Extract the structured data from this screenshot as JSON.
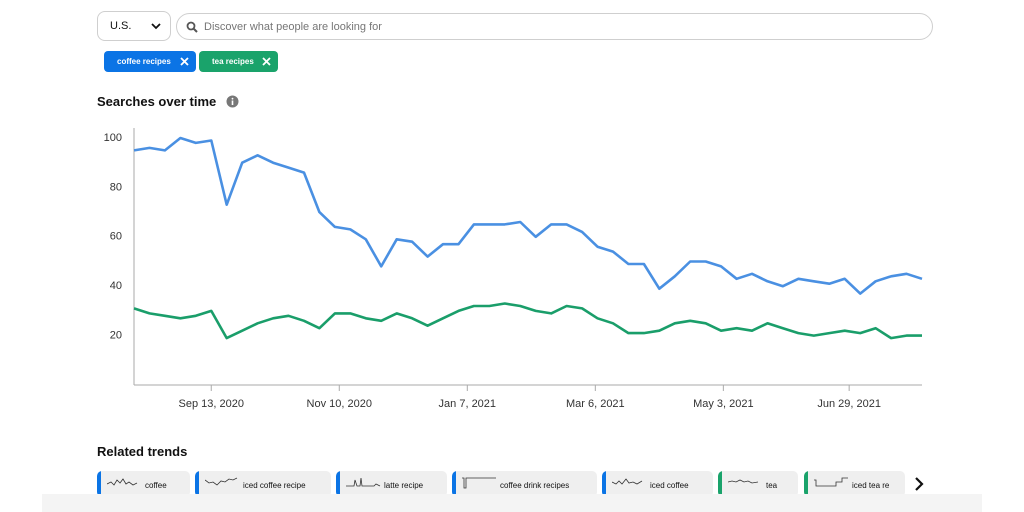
{
  "header": {
    "country": "U.S.",
    "search_placeholder": "Discover what people are looking for"
  },
  "filters": [
    {
      "label": "coffee recipes",
      "color": "#0b74e5"
    },
    {
      "label": "tea recipes",
      "color": "#1aa36b"
    }
  ],
  "chart_data": {
    "type": "line",
    "title": "Searches over time",
    "x": [
      "2020-08-09",
      "2020-08-16",
      "2020-08-23",
      "2020-08-30",
      "2020-09-06",
      "2020-09-13",
      "2020-09-20",
      "2020-09-27",
      "2020-10-04",
      "2020-10-11",
      "2020-10-18",
      "2020-10-25",
      "2020-11-01",
      "2020-11-08",
      "2020-11-15",
      "2020-11-22",
      "2020-11-29",
      "2020-12-06",
      "2020-12-13",
      "2020-12-20",
      "2020-12-27",
      "2021-01-03",
      "2021-01-10",
      "2021-01-17",
      "2021-01-24",
      "2021-01-31",
      "2021-02-07",
      "2021-02-14",
      "2021-02-21",
      "2021-02-28",
      "2021-03-07",
      "2021-03-14",
      "2021-03-21",
      "2021-03-28",
      "2021-04-04",
      "2021-04-11",
      "2021-04-18",
      "2021-04-25",
      "2021-05-02",
      "2021-05-09",
      "2021-05-16",
      "2021-05-23",
      "2021-05-30",
      "2021-06-06",
      "2021-06-13",
      "2021-06-20",
      "2021-06-27",
      "2021-07-04",
      "2021-07-11",
      "2021-07-18",
      "2021-07-25",
      "2021-08-01"
    ],
    "series": [
      {
        "name": "coffee recipes",
        "color": "#4a90e2",
        "values": [
          95,
          96,
          95,
          100,
          98,
          99,
          73,
          90,
          93,
          90,
          88,
          86,
          70,
          64,
          63,
          59,
          48,
          59,
          58,
          52,
          57,
          57,
          65,
          65,
          65,
          66,
          60,
          65,
          65,
          62,
          56,
          54,
          49,
          49,
          39,
          44,
          50,
          50,
          48,
          43,
          45,
          42,
          40,
          43,
          42,
          41,
          43,
          37,
          42,
          44,
          45,
          43
        ]
      },
      {
        "name": "tea recipes",
        "color": "#1a9e6a",
        "values": [
          31,
          29,
          28,
          27,
          28,
          30,
          19,
          22,
          25,
          27,
          28,
          26,
          23,
          29,
          29,
          27,
          26,
          29,
          27,
          24,
          27,
          30,
          32,
          32,
          33,
          32,
          30,
          29,
          32,
          31,
          27,
          25,
          21,
          21,
          22,
          25,
          26,
          25,
          22,
          23,
          22,
          25,
          23,
          21,
          20,
          21,
          22,
          21,
          23,
          19,
          20,
          20
        ]
      }
    ],
    "xlim": [
      "2020-08-09",
      "2021-08-01"
    ],
    "xticks": [
      {
        "value": "2020-09-13",
        "label": "Sep 13, 2020"
      },
      {
        "value": "2020-11-10",
        "label": "Nov 10, 2020"
      },
      {
        "value": "2021-01-07",
        "label": "Jan 7, 2021"
      },
      {
        "value": "2021-03-06",
        "label": "Mar 6, 2021"
      },
      {
        "value": "2021-05-03",
        "label": "May 3, 2021"
      },
      {
        "value": "2021-06-29",
        "label": "Jun 29, 2021"
      }
    ],
    "ylim": [
      0,
      100
    ],
    "yticks": [
      20,
      40,
      60,
      80,
      100
    ],
    "grid": false
  },
  "related": {
    "title": "Related trends",
    "items": [
      {
        "label": "coffee",
        "color": "#0b74e5"
      },
      {
        "label": "iced coffee recipe",
        "color": "#0b74e5"
      },
      {
        "label": "latte recipe",
        "color": "#0b74e5"
      },
      {
        "label": "coffee drink recipes",
        "color": "#0b74e5"
      },
      {
        "label": "iced coffee",
        "color": "#0b74e5"
      },
      {
        "label": "tea",
        "color": "#1aa36b"
      },
      {
        "label": "iced tea re",
        "color": "#1aa36b"
      }
    ]
  }
}
